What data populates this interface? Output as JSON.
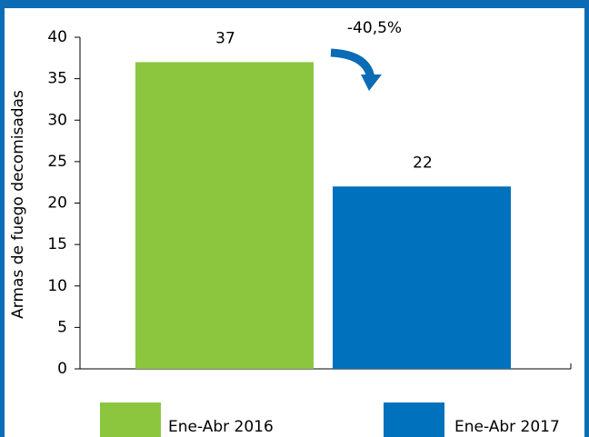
{
  "chart_data": {
    "type": "bar",
    "y_label": "Armas de fuego decomisadas",
    "categories": [
      "Ene-Abr 2016",
      "Ene-Abr 2017"
    ],
    "values": [
      37,
      22
    ],
    "colors": [
      "#8cc63f",
      "#0071bc"
    ],
    "annotation": "-40,5%",
    "ylim": [
      0,
      40
    ],
    "yticks": [
      0,
      5,
      10,
      15,
      20,
      25,
      30,
      35,
      40
    ],
    "grid": false
  }
}
